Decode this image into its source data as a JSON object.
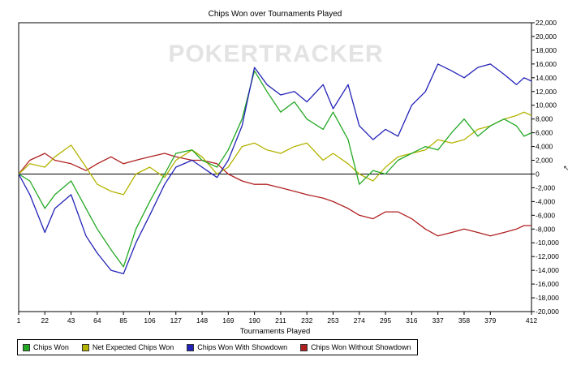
{
  "chart_data": {
    "type": "line",
    "title": "Chips Won over Tournaments Played",
    "xlabel": "Tournaments Played",
    "ylabel": "",
    "watermark": "POKERTRACKER",
    "x_ticks": [
      1,
      22,
      43,
      64,
      85,
      106,
      127,
      148,
      169,
      190,
      211,
      232,
      253,
      274,
      295,
      316,
      337,
      358,
      379,
      412
    ],
    "y_ticks": [
      22000,
      20000,
      18000,
      16000,
      14000,
      12000,
      10000,
      8000,
      6000,
      4000,
      2000,
      0,
      -2000,
      -4000,
      -6000,
      -8000,
      -10000,
      -12000,
      -14000,
      -16000,
      -18000,
      -20000
    ],
    "xlim": [
      1,
      412
    ],
    "ylim": [
      -20000,
      22000
    ],
    "grid": false,
    "legend_position": "bottom",
    "series": [
      {
        "name": "Chips Won",
        "color": "#22a822",
        "x": [
          1,
          10,
          22,
          30,
          43,
          55,
          64,
          75,
          85,
          95,
          106,
          118,
          127,
          140,
          148,
          160,
          169,
          180,
          190,
          200,
          211,
          222,
          232,
          245,
          253,
          265,
          274,
          285,
          295,
          305,
          316,
          327,
          337,
          348,
          358,
          369,
          379,
          390,
          400,
          406,
          412
        ],
        "y": [
          0,
          -1000,
          -5000,
          -3000,
          -1000,
          -5000,
          -8000,
          -11000,
          -13500,
          -8000,
          -4000,
          0,
          3000,
          3500,
          2000,
          1000,
          3500,
          8000,
          15000,
          12000,
          9000,
          10500,
          8000,
          6500,
          9000,
          5000,
          -1500,
          500,
          0,
          2000,
          3000,
          4000,
          3500,
          6000,
          8000,
          5500,
          7000,
          8000,
          7000,
          5500,
          6000
        ]
      },
      {
        "name": "Net Expected Chips Won",
        "color": "#b3b300",
        "x": [
          1,
          10,
          22,
          30,
          43,
          55,
          64,
          75,
          85,
          95,
          106,
          118,
          127,
          140,
          148,
          160,
          169,
          180,
          190,
          200,
          211,
          222,
          232,
          245,
          253,
          265,
          274,
          285,
          295,
          305,
          316,
          327,
          337,
          348,
          358,
          369,
          379,
          390,
          400,
          406,
          412
        ],
        "y": [
          0,
          1500,
          1000,
          2500,
          4200,
          1000,
          -1500,
          -2500,
          -3000,
          0,
          1000,
          -500,
          2000,
          3500,
          2500,
          0,
          1000,
          4000,
          4500,
          3500,
          3000,
          4000,
          4500,
          2000,
          3000,
          1500,
          0,
          -1000,
          1000,
          2500,
          3000,
          3500,
          5000,
          4500,
          5000,
          6500,
          7000,
          8000,
          8500,
          9000,
          8500
        ]
      },
      {
        "name": "Chips Won With Showdown",
        "color": "#2222b8",
        "x": [
          1,
          10,
          22,
          30,
          43,
          55,
          64,
          75,
          85,
          95,
          106,
          118,
          127,
          140,
          148,
          160,
          169,
          180,
          190,
          200,
          211,
          222,
          232,
          245,
          253,
          265,
          274,
          285,
          295,
          305,
          316,
          327,
          337,
          348,
          358,
          369,
          379,
          390,
          400,
          406,
          412
        ],
        "y": [
          0,
          -3000,
          -8500,
          -5000,
          -3000,
          -9000,
          -11500,
          -14000,
          -14500,
          -10000,
          -6000,
          -1500,
          1000,
          2000,
          1000,
          -500,
          2000,
          7000,
          15500,
          13000,
          11500,
          12000,
          10500,
          13000,
          9500,
          13000,
          7000,
          5000,
          6500,
          5500,
          10000,
          12000,
          16000,
          15000,
          14000,
          15500,
          16000,
          14500,
          13000,
          14000,
          13500
        ]
      },
      {
        "name": "Chips Won Without Showdown",
        "color": "#b02020",
        "x": [
          1,
          10,
          22,
          30,
          43,
          55,
          64,
          75,
          85,
          95,
          106,
          118,
          127,
          140,
          148,
          160,
          169,
          180,
          190,
          200,
          211,
          222,
          232,
          245,
          253,
          265,
          274,
          285,
          295,
          305,
          316,
          327,
          337,
          348,
          358,
          369,
          379,
          390,
          400,
          406,
          412
        ],
        "y": [
          0,
          2000,
          3000,
          2000,
          1500,
          500,
          1500,
          2500,
          1500,
          2000,
          2500,
          3000,
          2500,
          2000,
          2000,
          1500,
          0,
          -1000,
          -1500,
          -1500,
          -2000,
          -2500,
          -3000,
          -3500,
          -4000,
          -5000,
          -6000,
          -6500,
          -5500,
          -5500,
          -6500,
          -8000,
          -9000,
          -8500,
          -8000,
          -8500,
          -9000,
          -8500,
          -8000,
          -7500,
          -7500
        ]
      }
    ]
  },
  "legend": {
    "items": [
      {
        "label": "Chips Won",
        "color": "#22a822"
      },
      {
        "label": "Net Expected Chips Won",
        "color": "#b3b300"
      },
      {
        "label": "Chips Won With Showdown",
        "color": "#2222b8"
      },
      {
        "label": "Chips Won Without Showdown",
        "color": "#b02020"
      }
    ]
  }
}
